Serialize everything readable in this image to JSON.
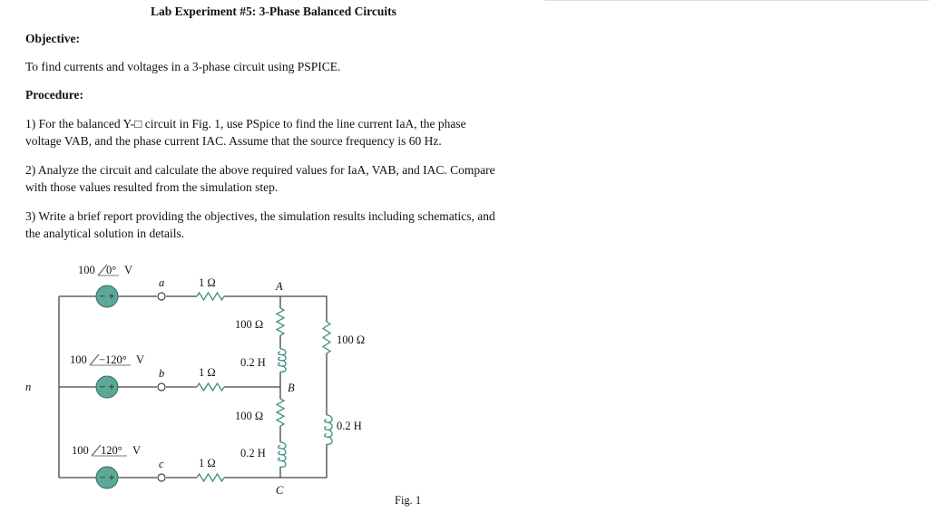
{
  "title": "Lab Experiment #5: 3-Phase Balanced Circuits",
  "objective_heading": "Objective:",
  "objective_text": "To find currents and voltages in a 3-phase circuit using PSPICE.",
  "procedure_heading": "Procedure:",
  "steps": [
    [
      "1) For the balanced Y-□ circuit in Fig. 1, use PSpice to find the line current IaA, the phase",
      "voltage VAB, and the phase current IAC. Assume that the source frequency is 60 Hz."
    ],
    [
      "2) Analyze the circuit and calculate the above required values for IaA, VAB, and IAC. Compare",
      "with those values resulted from the simulation step."
    ],
    [
      "3) Write a brief report providing the objectives, the simulation results including schematics, and",
      "the analytical solution in details."
    ]
  ],
  "figure": {
    "caption": "Fig. 1",
    "colors": {
      "component": "#3f8f82",
      "source_fill": "#5ea898",
      "wire": "#444444"
    },
    "sources": [
      {
        "magnitude": "100",
        "angle": "0°",
        "unit": "V",
        "polarity": "− +"
      },
      {
        "magnitude": "100",
        "angle": "−120°",
        "unit": "V",
        "polarity": "− +"
      },
      {
        "magnitude": "100",
        "angle": "120°",
        "unit": "V",
        "polarity": "− +"
      }
    ],
    "neutral_label": "n",
    "terminal_labels": [
      "a",
      "b",
      "c"
    ],
    "line_resistors": [
      "1 Ω",
      "1 Ω",
      "1 Ω"
    ],
    "node_labels": [
      "A",
      "B",
      "C"
    ],
    "load_AB": {
      "r": "100 Ω",
      "l": "0.2 H"
    },
    "load_BC": {
      "r": "100 Ω",
      "l": "0.2 H"
    },
    "load_CA": {
      "r": "100 Ω",
      "l": "0.2 H"
    }
  }
}
